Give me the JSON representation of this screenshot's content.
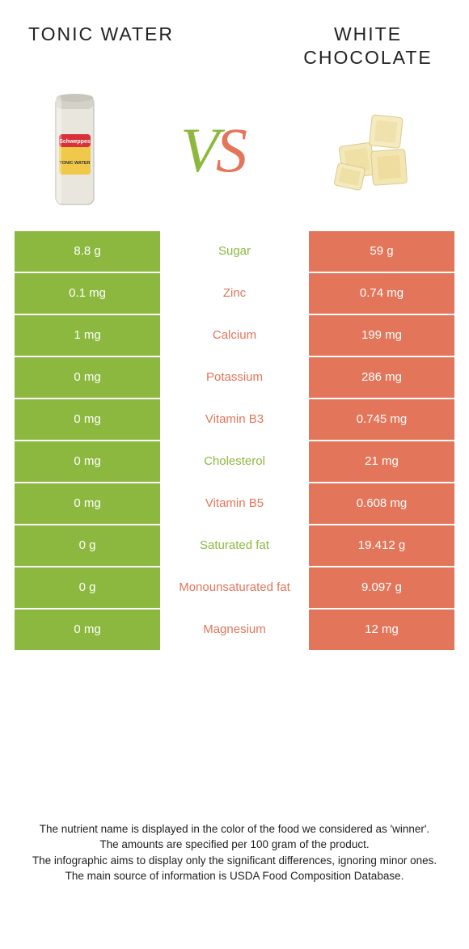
{
  "colors": {
    "left": "#8cb83f",
    "right": "#e2755a",
    "bg": "#ffffff",
    "text": "#222222"
  },
  "left_title": "Tonic water",
  "right_title": "White chocolate",
  "vs_v": "V",
  "vs_s": "S",
  "rows": [
    {
      "label": "Sugar",
      "left": "8.8 g",
      "right": "59 g",
      "winner": "left"
    },
    {
      "label": "Zinc",
      "left": "0.1 mg",
      "right": "0.74 mg",
      "winner": "right"
    },
    {
      "label": "Calcium",
      "left": "1 mg",
      "right": "199 mg",
      "winner": "right"
    },
    {
      "label": "Potassium",
      "left": "0 mg",
      "right": "286 mg",
      "winner": "right"
    },
    {
      "label": "Vitamin B3",
      "left": "0 mg",
      "right": "0.745 mg",
      "winner": "right"
    },
    {
      "label": "Cholesterol",
      "left": "0 mg",
      "right": "21 mg",
      "winner": "left"
    },
    {
      "label": "Vitamin B5",
      "left": "0 mg",
      "right": "0.608 mg",
      "winner": "right"
    },
    {
      "label": "Saturated fat",
      "left": "0 g",
      "right": "19.412 g",
      "winner": "left"
    },
    {
      "label": "Monounsaturated fat",
      "left": "0 g",
      "right": "9.097 g",
      "winner": "right"
    },
    {
      "label": "Magnesium",
      "left": "0 mg",
      "right": "12 mg",
      "winner": "right"
    }
  ],
  "footer": [
    "The nutrient name is displayed in the color of the food we considered as 'winner'.",
    "The amounts are specified per 100 gram of the product.",
    "The infographic aims to display only the significant differences, ignoring minor ones.",
    "The main source of information is USDA Food Composition Database."
  ]
}
